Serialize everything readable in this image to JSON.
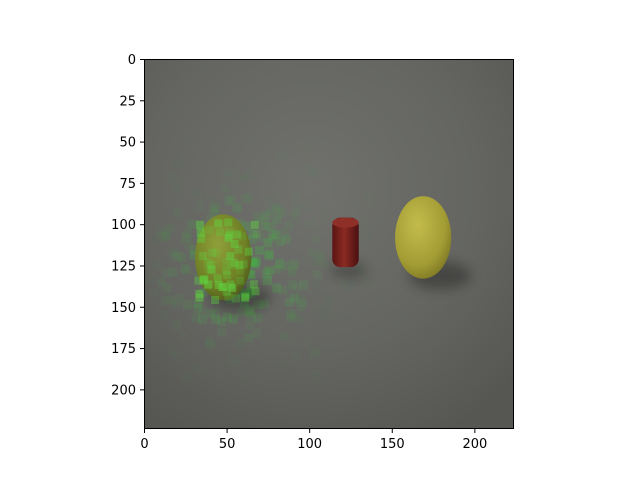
{
  "chart_data": {
    "type": "image",
    "title": "",
    "xlabel": "",
    "ylabel": "",
    "xlim": [
      0,
      224
    ],
    "ylim": [
      224,
      0
    ],
    "x_ticks": [
      0,
      50,
      100,
      150,
      200
    ],
    "y_ticks": [
      0,
      25,
      50,
      75,
      100,
      125,
      150,
      175,
      200
    ],
    "x_tick_labels": [
      "0",
      "50",
      "100",
      "150",
      "200"
    ],
    "y_tick_labels": [
      "0",
      "25",
      "50",
      "75",
      "100",
      "125",
      "150",
      "175",
      "200"
    ],
    "grid": false,
    "legend": "none",
    "colors": {
      "background": "#5f605c",
      "floor_light": "#6a6b67",
      "heatmap_highlight": "#3fbf3f",
      "green_ellipsoid": "#7a8a2a",
      "red_cylinder": "#7a2020",
      "yellow_ellipsoid": "#a9a23a"
    },
    "objects": [
      {
        "name": "green-ellipsoid",
        "cx": 48,
        "cy": 120,
        "rx": 17,
        "ry": 26
      },
      {
        "name": "red-cylinder",
        "x": 114,
        "y": 96,
        "width": 16,
        "height": 30
      },
      {
        "name": "yellow-ellipsoid",
        "cx": 169,
        "cy": 108,
        "rx": 17,
        "ry": 25
      }
    ],
    "heatmap_center": [
      55,
      125
    ]
  }
}
